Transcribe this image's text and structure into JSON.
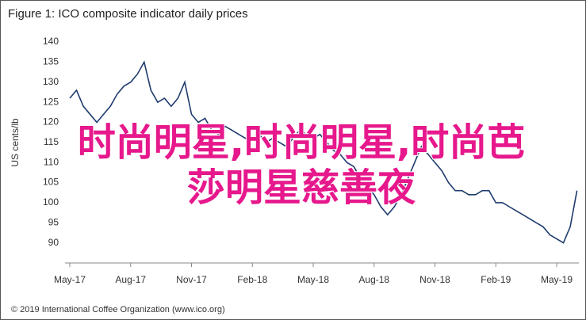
{
  "chart_data": {
    "type": "line",
    "title": "Figure 1: ICO composite indicator daily prices",
    "y_label": "US cents/lb",
    "footer": "© 2019 International Coffee Organization (www.ico.org)",
    "overlay_text": [
      "时尚明星,时尚明星,时尚芭",
      "莎明星慈善夜"
    ],
    "categories": [
      "May-17",
      null,
      null,
      null,
      null,
      null,
      null,
      null,
      null,
      "Aug-17",
      null,
      null,
      null,
      null,
      null,
      null,
      null,
      null,
      "Nov-17",
      null,
      null,
      null,
      null,
      null,
      null,
      null,
      null,
      "Feb-18",
      null,
      null,
      null,
      null,
      null,
      null,
      null,
      null,
      "May-18",
      null,
      null,
      null,
      null,
      null,
      null,
      null,
      null,
      "Aug-18",
      null,
      null,
      null,
      null,
      null,
      null,
      null,
      null,
      "Nov-18",
      null,
      null,
      null,
      null,
      null,
      null,
      null,
      null,
      "Feb-19",
      null,
      null,
      null,
      null,
      null,
      null,
      null,
      null,
      "May-19",
      null,
      null,
      null
    ],
    "series": [
      {
        "name": "ICO composite indicator",
        "color": "#1f3c6e",
        "values": [
          126,
          128,
          124,
          122,
          120,
          122,
          124,
          127,
          129,
          130,
          132,
          135,
          128,
          125,
          126,
          124,
          126,
          130,
          122,
          120,
          121,
          118,
          117,
          119,
          118,
          117,
          116,
          116,
          117,
          115,
          116,
          115,
          114,
          116,
          118,
          117,
          116,
          117,
          115,
          113,
          112,
          110,
          109,
          106,
          104,
          102,
          99,
          97,
          99,
          102,
          106,
          110,
          114,
          112,
          110,
          108,
          105,
          103,
          103,
          102,
          102,
          103,
          103,
          100,
          100,
          99,
          98,
          97,
          96,
          95,
          94,
          92,
          91,
          90,
          94,
          103
        ]
      }
    ],
    "ylim": [
      85,
      140
    ],
    "yticks": [
      90,
      95,
      100,
      105,
      110,
      115,
      120,
      125,
      130,
      135,
      140
    ],
    "grid": false
  }
}
